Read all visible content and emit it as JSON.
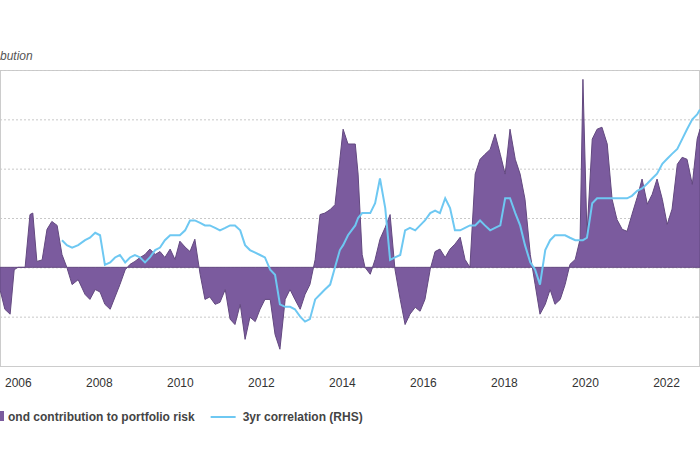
{
  "chart_data": {
    "type": "line",
    "y_label": "bution",
    "x": [
      2005.56,
      2005.68,
      2005.81,
      2005.91,
      2006.0,
      2006.18,
      2006.3,
      2006.37,
      2006.47,
      2006.6,
      2006.72,
      2006.84,
      2006.97,
      2007.09,
      2007.21,
      2007.34,
      2007.49,
      2007.66,
      2007.78,
      2007.91,
      2008.03,
      2008.15,
      2008.28,
      2008.4,
      2008.52,
      2008.65,
      2008.77,
      2008.89,
      2009.02,
      2009.14,
      2009.26,
      2009.39,
      2009.51,
      2009.63,
      2009.76,
      2009.88,
      2010.0,
      2010.13,
      2010.25,
      2010.37,
      2010.5,
      2010.62,
      2010.74,
      2010.87,
      2010.99,
      2011.12,
      2011.24,
      2011.36,
      2011.49,
      2011.61,
      2011.73,
      2011.86,
      2011.98,
      2012.1,
      2012.23,
      2012.35,
      2012.47,
      2012.6,
      2012.72,
      2012.84,
      2012.97,
      2013.09,
      2013.21,
      2013.34,
      2013.46,
      2013.58,
      2013.71,
      2013.83,
      2013.95,
      2014.03,
      2014.15,
      2014.33,
      2014.4,
      2014.5,
      2014.57,
      2014.7,
      2014.82,
      2014.94,
      2015.07,
      2015.19,
      2015.31,
      2015.44,
      2015.56,
      2015.68,
      2015.81,
      2015.93,
      2016.05,
      2016.18,
      2016.3,
      2016.42,
      2016.55,
      2016.67,
      2016.79,
      2016.92,
      2017.04,
      2017.16,
      2017.29,
      2017.41,
      2017.53,
      2017.66,
      2017.78,
      2017.91,
      2018.03,
      2018.15,
      2018.28,
      2018.4,
      2018.52,
      2018.65,
      2018.77,
      2018.89,
      2019.02,
      2019.14,
      2019.26,
      2019.39,
      2019.51,
      2019.63,
      2019.76,
      2019.88,
      2019.95,
      2020.05,
      2020.18,
      2020.3,
      2020.42,
      2020.55,
      2020.67,
      2020.79,
      2020.92,
      2021.04,
      2021.16,
      2021.29,
      2021.41,
      2021.54,
      2021.66,
      2021.78,
      2021.91,
      2022.03,
      2022.15,
      2022.28,
      2022.4,
      2022.52,
      2022.65,
      2022.77,
      2022.84
    ],
    "series": [
      {
        "name": "ond contribution to portfolio risk",
        "type": "area",
        "color": "#7b5b9e",
        "values": [
          -0.45,
          -0.85,
          -0.95,
          -0.05,
          0,
          0,
          1.07,
          1.1,
          0.12,
          0.15,
          0.77,
          0.93,
          0.85,
          0.26,
          0,
          -0.35,
          -0.25,
          -0.55,
          -0.65,
          -0.45,
          -0.5,
          -0.75,
          -0.85,
          -0.6,
          -0.35,
          -0.05,
          0.06,
          0.12,
          0.2,
          0.26,
          0.37,
          0.26,
          0.32,
          0.2,
          0.37,
          0.16,
          0.53,
          0.41,
          0.32,
          0.57,
          -0.14,
          -0.65,
          -0.6,
          -0.75,
          -0.71,
          -0.45,
          -1.05,
          -1.16,
          -0.75,
          -1.46,
          -1.01,
          -1.1,
          -0.85,
          -0.65,
          -0.65,
          -1.36,
          -1.66,
          -0.65,
          -0.45,
          -0.65,
          -0.85,
          -0.55,
          -0.35,
          0.16,
          1.07,
          1.1,
          1.17,
          1.27,
          2.19,
          2.8,
          2.5,
          2.5,
          1.89,
          0.26,
          0,
          -0.14,
          0.16,
          0.57,
          0.81,
          1.07,
          -0.04,
          -0.65,
          -1.16,
          -0.95,
          -0.81,
          -0.89,
          -0.65,
          -0.04,
          0.32,
          0.37,
          0.2,
          0.37,
          0.47,
          0.61,
          0.16,
          0,
          1.89,
          2.19,
          2.29,
          2.39,
          2.7,
          2.29,
          1.89,
          2.8,
          2.19,
          1.89,
          1.38,
          0.26,
          -0.35,
          -0.95,
          -0.75,
          -0.45,
          -0.75,
          -0.65,
          -0.35,
          0.06,
          0.16,
          0.57,
          3.81,
          0.67,
          2.6,
          2.8,
          2.84,
          2.5,
          1.38,
          0.97,
          0.77,
          0.73,
          1.07,
          1.42,
          1.79,
          1.28,
          1.48,
          1.79,
          1.38,
          0.87,
          1.18,
          2.09,
          2.23,
          2.19,
          1.68,
          2.6,
          2.8
        ]
      },
      {
        "name": "3yr correlation (RHS)",
        "type": "line",
        "axis": "y2",
        "color": "#6ec8f2",
        "values": [
          null,
          null,
          null,
          null,
          null,
          null,
          null,
          null,
          null,
          null,
          null,
          null,
          null,
          0.11,
          0.09,
          0.08,
          0.09,
          0.11,
          0.12,
          0.14,
          0.13,
          0.01,
          0.02,
          0.04,
          0.05,
          0.02,
          0.04,
          0.05,
          0.04,
          0.02,
          0.04,
          0.07,
          0.08,
          0.11,
          0.13,
          0.13,
          0.13,
          0.15,
          0.19,
          0.19,
          0.18,
          0.17,
          0.17,
          0.16,
          0.15,
          0.16,
          0.17,
          0.17,
          0.15,
          0.09,
          0.07,
          0.06,
          0.05,
          0.04,
          -0.01,
          -0.03,
          -0.15,
          -0.16,
          -0.16,
          -0.17,
          -0.2,
          -0.22,
          -0.21,
          -0.13,
          -0.11,
          -0.09,
          -0.07,
          0,
          0.07,
          0.09,
          0.13,
          0.17,
          0.2,
          0.22,
          0.22,
          0.22,
          0.26,
          0.36,
          0.24,
          0.03,
          0.04,
          0.05,
          0.15,
          0.16,
          0.15,
          0.17,
          0.19,
          0.22,
          0.23,
          0.22,
          0.28,
          0.24,
          0.15,
          0.15,
          0.16,
          0.17,
          0.17,
          0.19,
          0.17,
          0.15,
          0.16,
          0.17,
          0.28,
          0.28,
          0.22,
          0.17,
          0.09,
          0.02,
          -0.01,
          -0.07,
          0.07,
          0.11,
          0.13,
          0.13,
          0.13,
          0.12,
          0.11,
          0.11,
          0.11,
          0.12,
          0.26,
          0.28,
          0.28,
          0.28,
          0.28,
          0.28,
          0.28,
          0.28,
          0.29,
          0.31,
          0.32,
          0.34,
          0.36,
          0.38,
          0.42,
          0.44,
          0.46,
          0.48,
          0.52,
          0.56,
          0.6,
          0.62,
          0.64
        ]
      }
    ],
    "xlim": [
      2005.56,
      2022.84
    ],
    "xticks": [
      2006,
      2008,
      2010,
      2012,
      2014,
      2016,
      2018,
      2020,
      2022
    ],
    "ylim": [
      -2,
      4
    ],
    "yticks": [
      -2,
      -1,
      0,
      1,
      2,
      3,
      4
    ],
    "y2lim": [
      -0.4,
      0.8
    ],
    "y2ticks": [
      -0.4,
      -0.2,
      0,
      0.2,
      0.4,
      0.6,
      0.8
    ],
    "grid": true,
    "legend": "bottom",
    "tick_labels": "x"
  }
}
